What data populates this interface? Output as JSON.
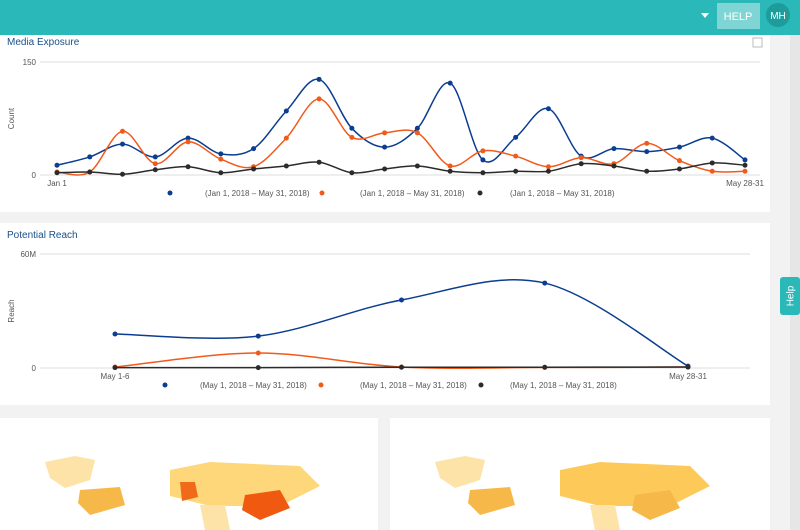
{
  "header": {
    "help": "HELP",
    "user": "MH"
  },
  "side_tab": "Help",
  "chart_data": [
    {
      "type": "line",
      "title": "Media Exposure",
      "y_label": "Count",
      "categories": [
        "Jan 1",
        null,
        null,
        null,
        null,
        null,
        null,
        null,
        null,
        null,
        null,
        null,
        null,
        null,
        null,
        null,
        null,
        null,
        null,
        null,
        null,
        "May 28-31"
      ],
      "ylim": [
        0,
        150
      ],
      "yticks": [
        0,
        150
      ],
      "series": [
        {
          "name": "(Jan 1, 2018 – May 31, 2018)",
          "color": "#0b3d91",
          "values": [
            13,
            24,
            41,
            24,
            49,
            28,
            35,
            85,
            127,
            62,
            37,
            62,
            122,
            20,
            50,
            88,
            25,
            35,
            31,
            37,
            49,
            20
          ]
        },
        {
          "name": "(Jan 1, 2018 – May 31, 2018)",
          "color": "#f05a1a",
          "values": [
            4,
            4,
            58,
            15,
            44,
            21,
            11,
            49,
            101,
            50,
            56,
            56,
            12,
            32,
            25,
            11,
            23,
            15,
            42,
            19,
            5,
            5
          ]
        },
        {
          "name": "(Jan 1, 2018 – May 31, 2018)",
          "color": "#2b2b2b",
          "values": [
            3,
            4,
            1,
            7,
            11,
            3,
            8,
            12,
            17,
            3,
            8,
            12,
            5,
            3,
            5,
            5,
            15,
            12,
            5,
            8,
            16,
            13
          ]
        }
      ]
    },
    {
      "type": "line",
      "title": "Potential Reach",
      "y_label": "Reach",
      "categories": [
        "May 1-6",
        null,
        null,
        null,
        "May 28-31"
      ],
      "ylim": [
        0,
        60000000
      ],
      "yticks": [
        0,
        {
          "value": 60000000,
          "label": "60M"
        }
      ],
      "series": [
        {
          "name": "(May 1, 2018 – May 31, 2018)",
          "color": "#0b3d91",
          "values": [
            17900000,
            16800000,
            35800000,
            44700000,
            1000000
          ]
        },
        {
          "name": "(May 1, 2018 – May 31, 2018)",
          "color": "#f05a1a",
          "values": [
            500000,
            7900000,
            500000,
            300000,
            500000
          ]
        },
        {
          "name": "(May 1, 2018 – May 31, 2018)",
          "color": "#2b2b2b",
          "values": [
            200000,
            200000,
            400000,
            400000,
            500000
          ]
        }
      ]
    }
  ]
}
